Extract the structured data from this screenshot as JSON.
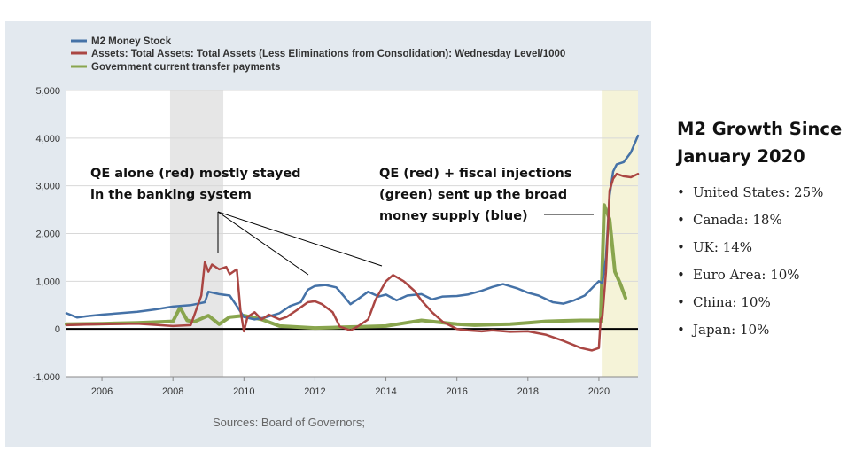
{
  "chart_data": {
    "type": "line",
    "legend": [
      {
        "name": "M2 Money Stock",
        "color": "#4572A7"
      },
      {
        "name": "Assets: Total Assets: Total Assets (Less Eliminations from Consolidation): Wednesday Level/1000",
        "color": "#AA4643"
      },
      {
        "name": "Government current transfer payments",
        "color": "#89A54E"
      }
    ],
    "legend_position": "top-left",
    "x_ticks": [
      "2006",
      "2008",
      "2010",
      "2012",
      "2014",
      "2016",
      "2018",
      "2020"
    ],
    "y_ticks": [
      "5,000",
      "4,000",
      "3,000",
      "2,000",
      "1,000",
      "0",
      "-1,000"
    ],
    "xlim": [
      2005.0,
      2021.1
    ],
    "ylim": [
      -1000,
      5000
    ],
    "grid": "horizontal",
    "shaded_periods": [
      {
        "start": 2007.92,
        "end": 2009.42,
        "color": "#E6E6E6"
      },
      {
        "start": 2020.08,
        "end": 2021.1,
        "color": "#F5F3D8"
      }
    ],
    "series": [
      {
        "name": "M2 Money Stock",
        "color": "#4572A7",
        "points": [
          [
            2005.0,
            330
          ],
          [
            2005.3,
            240
          ],
          [
            2005.6,
            270
          ],
          [
            2006.0,
            300
          ],
          [
            2006.5,
            330
          ],
          [
            2007.0,
            360
          ],
          [
            2007.5,
            410
          ],
          [
            2008.0,
            470
          ],
          [
            2008.5,
            500
          ],
          [
            2008.9,
            560
          ],
          [
            2009.0,
            780
          ],
          [
            2009.3,
            730
          ],
          [
            2009.6,
            700
          ],
          [
            2009.8,
            480
          ],
          [
            2010.0,
            250
          ],
          [
            2010.3,
            200
          ],
          [
            2010.6,
            240
          ],
          [
            2011.0,
            330
          ],
          [
            2011.3,
            480
          ],
          [
            2011.6,
            560
          ],
          [
            2011.8,
            820
          ],
          [
            2012.0,
            900
          ],
          [
            2012.3,
            920
          ],
          [
            2012.6,
            870
          ],
          [
            2012.8,
            700
          ],
          [
            2013.0,
            520
          ],
          [
            2013.2,
            620
          ],
          [
            2013.5,
            780
          ],
          [
            2013.8,
            680
          ],
          [
            2014.0,
            720
          ],
          [
            2014.3,
            600
          ],
          [
            2014.6,
            700
          ],
          [
            2015.0,
            730
          ],
          [
            2015.3,
            620
          ],
          [
            2015.6,
            680
          ],
          [
            2016.0,
            690
          ],
          [
            2016.3,
            720
          ],
          [
            2016.7,
            800
          ],
          [
            2017.0,
            880
          ],
          [
            2017.3,
            940
          ],
          [
            2017.7,
            850
          ],
          [
            2018.0,
            760
          ],
          [
            2018.3,
            700
          ],
          [
            2018.7,
            560
          ],
          [
            2019.0,
            530
          ],
          [
            2019.3,
            600
          ],
          [
            2019.6,
            700
          ],
          [
            2019.8,
            850
          ],
          [
            2020.0,
            1000
          ],
          [
            2020.1,
            960
          ],
          [
            2020.2,
            1500
          ],
          [
            2020.3,
            2800
          ],
          [
            2020.4,
            3300
          ],
          [
            2020.5,
            3450
          ],
          [
            2020.7,
            3500
          ],
          [
            2020.9,
            3700
          ],
          [
            2021.1,
            4050
          ]
        ]
      },
      {
        "name": "Assets: Total Assets: Total Assets (Less Eliminations from Consolidation): Wednesday Level/1000",
        "color": "#AA4643",
        "points": [
          [
            2005.0,
            80
          ],
          [
            2006.0,
            100
          ],
          [
            2007.0,
            110
          ],
          [
            2008.0,
            60
          ],
          [
            2008.5,
            80
          ],
          [
            2008.8,
            700
          ],
          [
            2008.9,
            1400
          ],
          [
            2009.0,
            1200
          ],
          [
            2009.1,
            1350
          ],
          [
            2009.3,
            1250
          ],
          [
            2009.5,
            1300
          ],
          [
            2009.6,
            1150
          ],
          [
            2009.8,
            1250
          ],
          [
            2009.9,
            400
          ],
          [
            2010.0,
            -50
          ],
          [
            2010.1,
            250
          ],
          [
            2010.3,
            350
          ],
          [
            2010.5,
            200
          ],
          [
            2010.7,
            300
          ],
          [
            2011.0,
            200
          ],
          [
            2011.2,
            250
          ],
          [
            2011.5,
            400
          ],
          [
            2011.8,
            560
          ],
          [
            2012.0,
            580
          ],
          [
            2012.2,
            520
          ],
          [
            2012.5,
            350
          ],
          [
            2012.7,
            50
          ],
          [
            2013.0,
            -30
          ],
          [
            2013.2,
            50
          ],
          [
            2013.5,
            200
          ],
          [
            2013.7,
            600
          ],
          [
            2014.0,
            1000
          ],
          [
            2014.2,
            1130
          ],
          [
            2014.5,
            1000
          ],
          [
            2014.8,
            800
          ],
          [
            2015.0,
            600
          ],
          [
            2015.3,
            350
          ],
          [
            2015.6,
            150
          ],
          [
            2016.0,
            0
          ],
          [
            2016.3,
            -30
          ],
          [
            2016.7,
            -50
          ],
          [
            2017.0,
            -30
          ],
          [
            2017.5,
            -60
          ],
          [
            2018.0,
            -50
          ],
          [
            2018.5,
            -120
          ],
          [
            2019.0,
            -250
          ],
          [
            2019.5,
            -400
          ],
          [
            2019.8,
            -450
          ],
          [
            2020.0,
            -400
          ],
          [
            2020.05,
            200
          ],
          [
            2020.1,
            260
          ],
          [
            2020.2,
            1200
          ],
          [
            2020.3,
            2900
          ],
          [
            2020.4,
            3150
          ],
          [
            2020.5,
            3250
          ],
          [
            2020.7,
            3200
          ],
          [
            2020.9,
            3180
          ],
          [
            2021.1,
            3250
          ]
        ]
      },
      {
        "name": "Government current transfer payments",
        "color": "#89A54E",
        "points": [
          [
            2005.0,
            100
          ],
          [
            2006.0,
            110
          ],
          [
            2007.0,
            130
          ],
          [
            2007.7,
            150
          ],
          [
            2008.0,
            160
          ],
          [
            2008.2,
            450
          ],
          [
            2008.4,
            180
          ],
          [
            2008.6,
            150
          ],
          [
            2009.0,
            280
          ],
          [
            2009.3,
            100
          ],
          [
            2009.6,
            250
          ],
          [
            2010.0,
            280
          ],
          [
            2010.5,
            200
          ],
          [
            2011.0,
            60
          ],
          [
            2011.5,
            40
          ],
          [
            2012.0,
            20
          ],
          [
            2012.5,
            30
          ],
          [
            2013.0,
            40
          ],
          [
            2013.5,
            50
          ],
          [
            2014.0,
            60
          ],
          [
            2014.5,
            120
          ],
          [
            2015.0,
            180
          ],
          [
            2015.5,
            140
          ],
          [
            2016.0,
            100
          ],
          [
            2016.5,
            80
          ],
          [
            2017.0,
            90
          ],
          [
            2017.5,
            100
          ],
          [
            2018.0,
            130
          ],
          [
            2018.5,
            160
          ],
          [
            2019.0,
            170
          ],
          [
            2019.5,
            180
          ],
          [
            2020.0,
            180
          ],
          [
            2020.05,
            150
          ],
          [
            2020.15,
            2600
          ],
          [
            2020.3,
            2300
          ],
          [
            2020.45,
            1200
          ],
          [
            2020.6,
            950
          ],
          [
            2020.75,
            650
          ]
        ]
      }
    ],
    "annotations": [
      {
        "lines": [
          "QE alone (red) mostly stayed",
          "in the banking system"
        ]
      },
      {
        "lines": [
          "QE (red) + fiscal injections",
          "(green) sent up the broad",
          "money supply (blue)"
        ]
      }
    ]
  },
  "source": "Sources: Board of Governors;",
  "sidebar": {
    "title_lines": [
      "M2 Growth Since",
      "January 2020"
    ],
    "items": [
      "United States: 25%",
      "Canada: 18%",
      "UK: 14%",
      "Euro Area: 10%",
      "China: 10%",
      "Japan: 10%"
    ]
  }
}
